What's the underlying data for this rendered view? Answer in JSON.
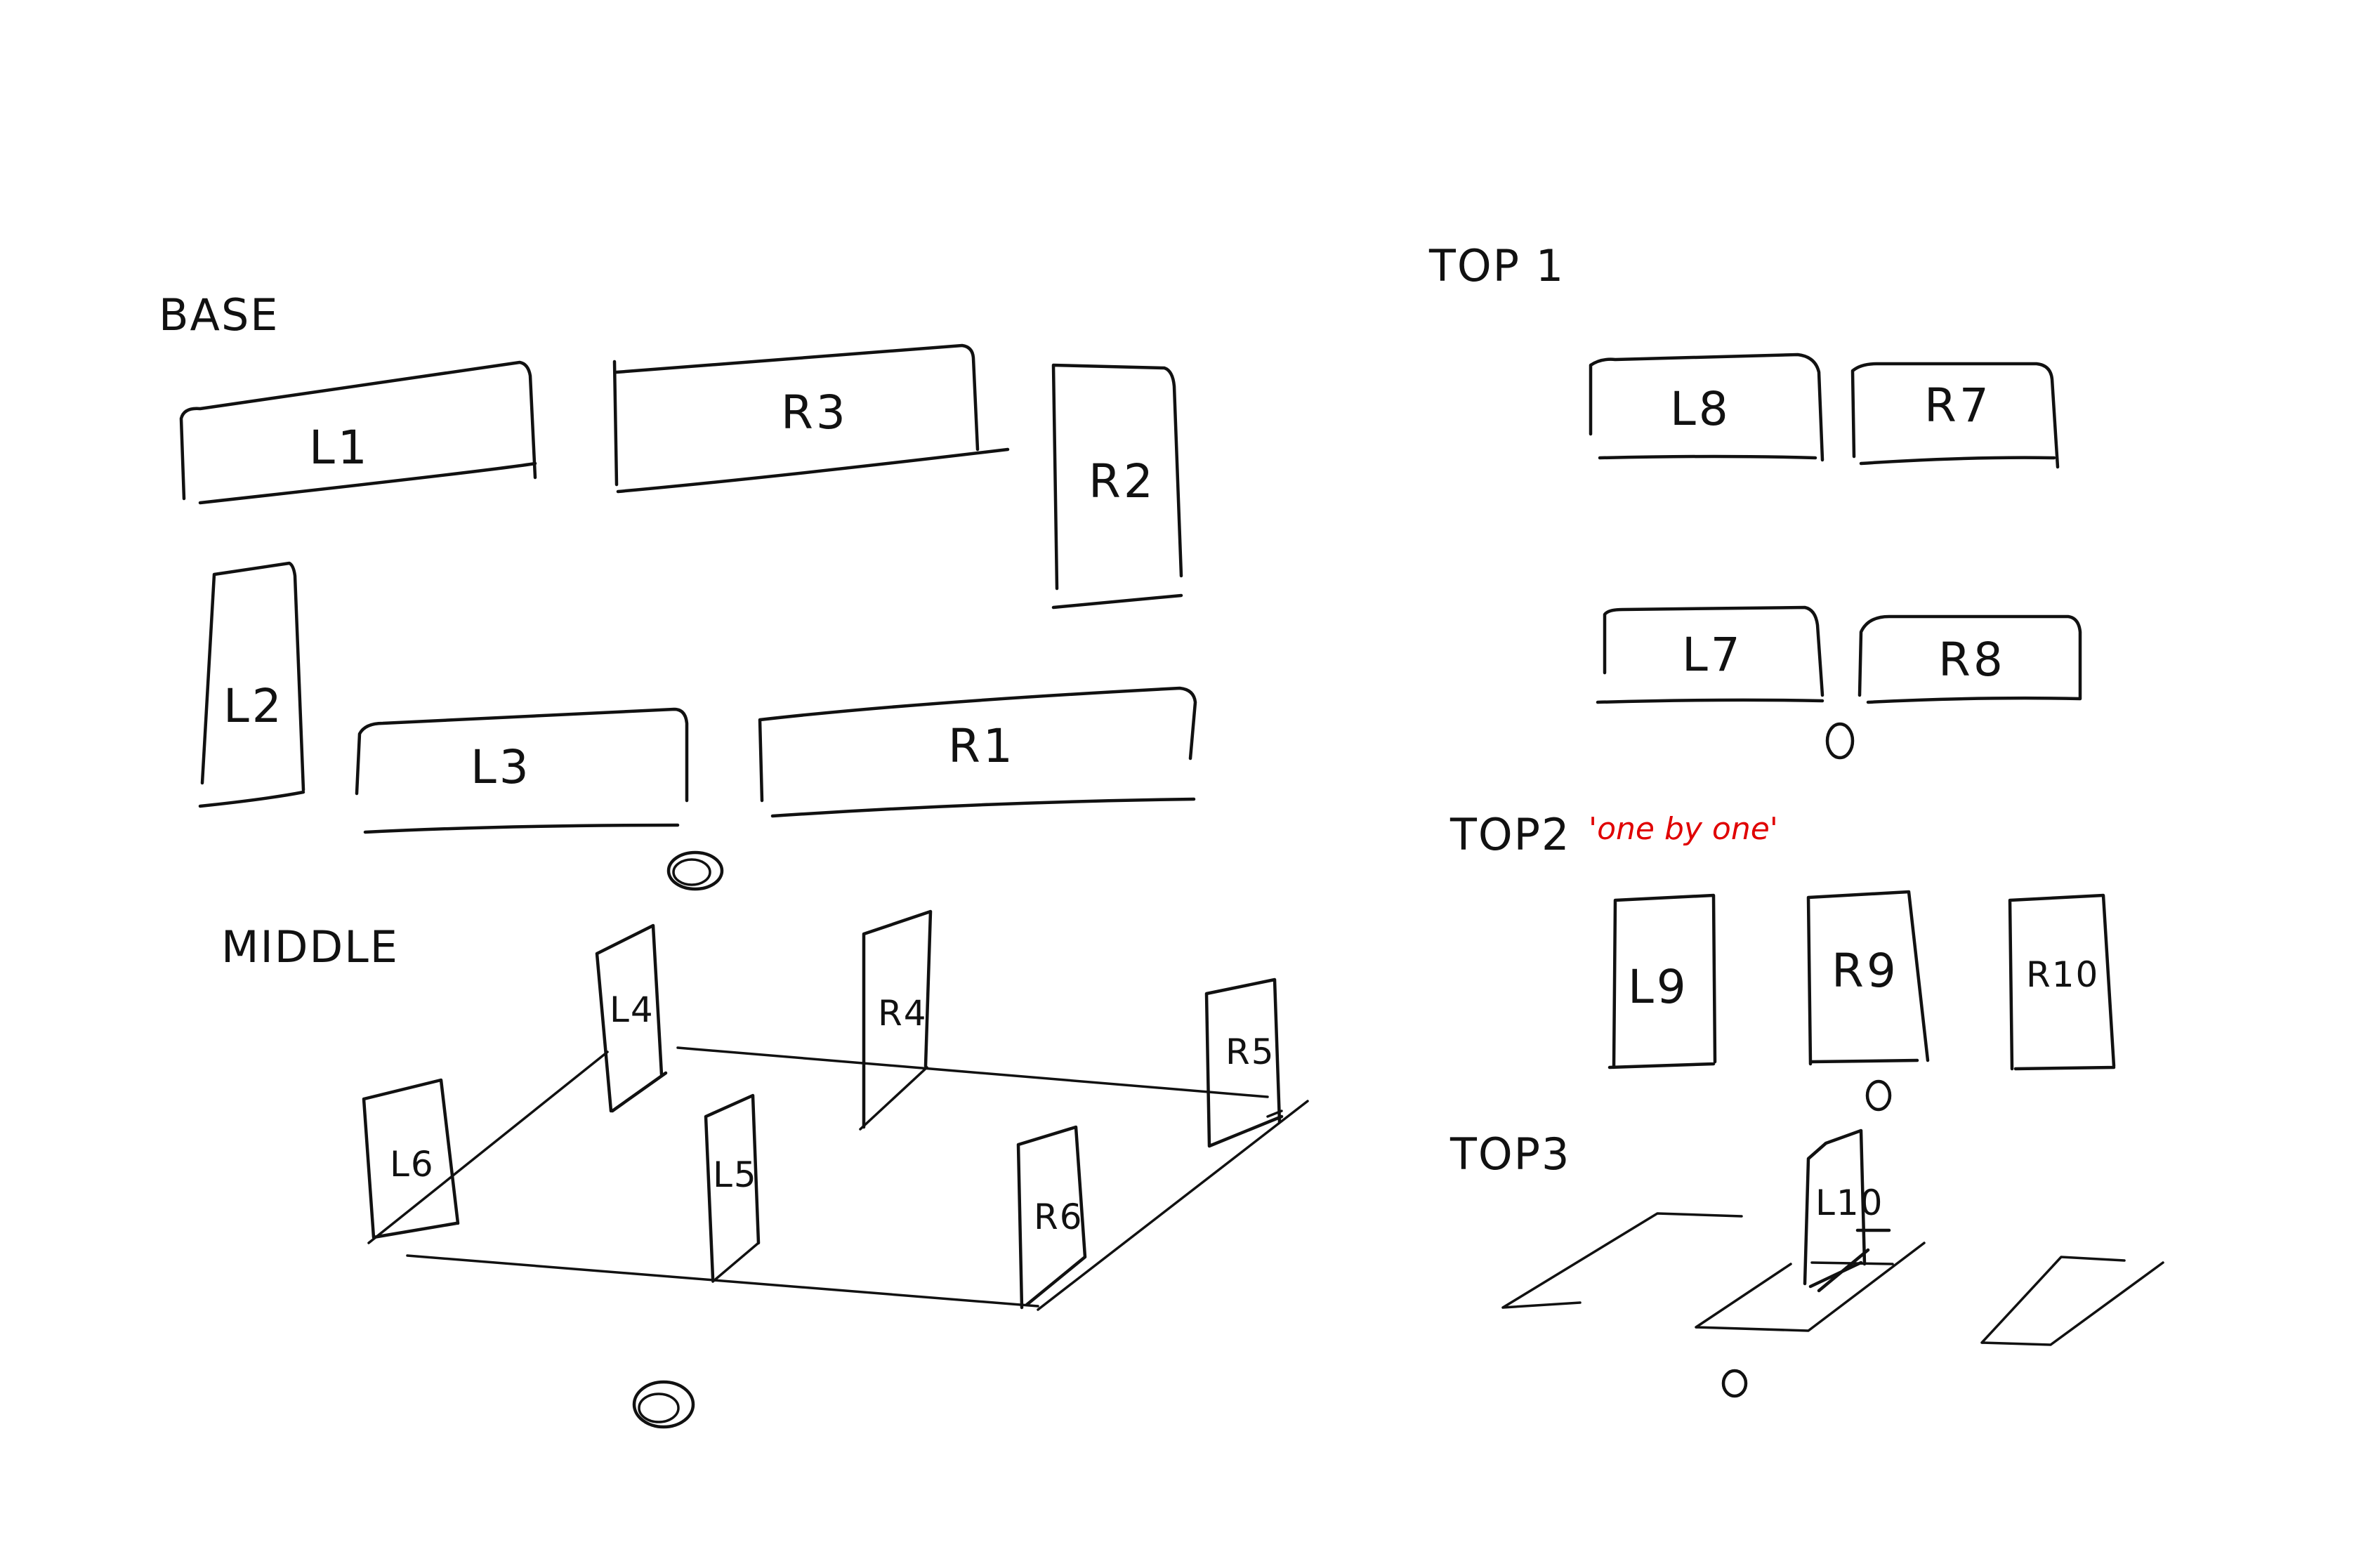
{
  "sections": {
    "base": {
      "title": "BASE",
      "pieces": {
        "L1": "L1",
        "R3": "R3",
        "R2": "R2",
        "L2": "L2",
        "L3": "L3",
        "R1": "R1"
      },
      "marker": "O"
    },
    "middle": {
      "title": "MIDDLE",
      "pieces": {
        "L4": "L4",
        "R4": "R4",
        "R5": "R5",
        "L6": "L6",
        "L5": "L5",
        "R6": "R6"
      },
      "marker": "O"
    },
    "top1": {
      "title": "TOP 1",
      "pieces": {
        "L8": "L8",
        "R7": "R7",
        "L7": "L7",
        "R8": "R8"
      },
      "marker": "O"
    },
    "top2": {
      "title": "TOP2",
      "note": "'one by one'",
      "pieces": {
        "L9": "L9",
        "R9": "R9",
        "R10": "R10"
      },
      "marker": "O"
    },
    "top3": {
      "title": "TOP3",
      "pieces": {
        "L10": "L10"
      },
      "marker": "O"
    }
  },
  "colors": {
    "ink": "#111111",
    "note": "#e00000",
    "background": "#ffffff"
  }
}
